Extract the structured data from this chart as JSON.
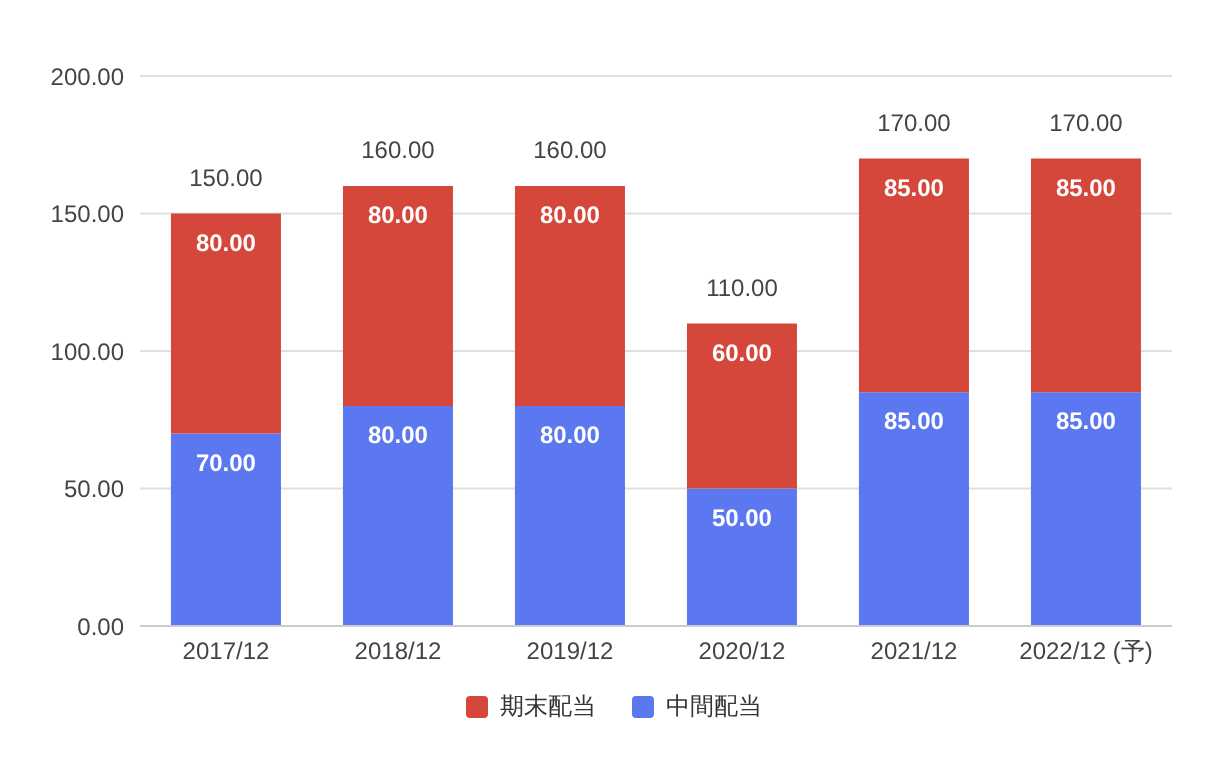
{
  "chart_data": {
    "type": "bar",
    "stacked": true,
    "categories": [
      "2017/12",
      "2018/12",
      "2019/12",
      "2020/12",
      "2021/12",
      "2022/12 (予)"
    ],
    "series": [
      {
        "name": "中間配当",
        "color": "#5b78f0",
        "values": [
          70,
          80,
          80,
          50,
          85,
          85
        ],
        "value_labels": [
          "70.00",
          "80.00",
          "80.00",
          "50.00",
          "85.00",
          "85.00"
        ]
      },
      {
        "name": "期末配当",
        "color": "#d4473a",
        "values": [
          80,
          80,
          80,
          60,
          85,
          85
        ],
        "value_labels": [
          "80.00",
          "80.00",
          "80.00",
          "60.00",
          "85.00",
          "85.00"
        ]
      }
    ],
    "totals": [
      "150.00",
      "160.00",
      "160.00",
      "110.00",
      "170.00",
      "170.00"
    ],
    "ylim": [
      0,
      200
    ],
    "yticks": [
      {
        "value": 0,
        "label": "0.00"
      },
      {
        "value": 50,
        "label": "50.00"
      },
      {
        "value": 100,
        "label": "100.00"
      },
      {
        "value": 150,
        "label": "150.00"
      },
      {
        "value": 200,
        "label": "200.00"
      }
    ],
    "grid": "y",
    "legend": "bottom"
  }
}
